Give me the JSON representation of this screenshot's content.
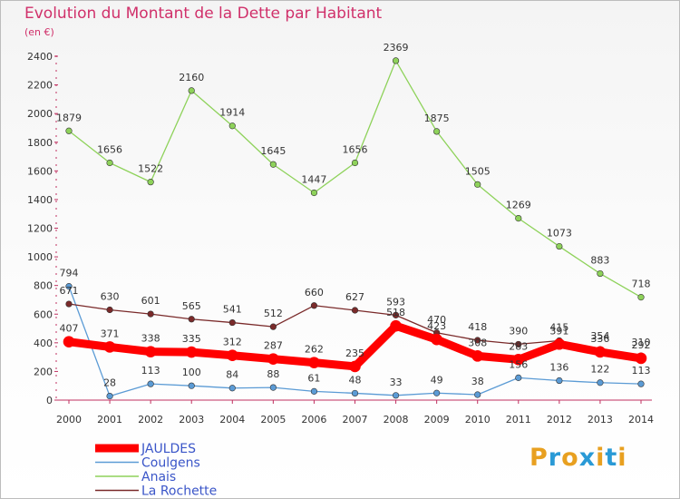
{
  "chart_data": {
    "type": "line",
    "title": "Evolution du Montant de la Dette par Habitant",
    "subtitle": "(en €)",
    "x": [
      "2000",
      "2001",
      "2002",
      "2003",
      "2004",
      "2005",
      "2006",
      "2007",
      "2008",
      "2009",
      "2010",
      "2011",
      "2012",
      "2013",
      "2014"
    ],
    "ylim": [
      0,
      2400
    ],
    "yticks": [
      "0",
      "200",
      "400",
      "600",
      "800",
      "1000",
      "1200",
      "1400",
      "1600",
      "1800",
      "2000",
      "2200",
      "2400"
    ],
    "grid": false,
    "legend_position": "bottom-left",
    "series": [
      {
        "name": "JAULDES",
        "color": "#ff0000",
        "values": [
          407,
          371,
          338,
          335,
          312,
          287,
          262,
          235,
          518,
          423,
          308,
          283,
          391,
          336,
          292
        ],
        "labels": [
          "407",
          "371",
          "338",
          "335",
          "312",
          "287",
          "262",
          "235",
          "518",
          "423",
          "308",
          "283",
          "391",
          "336",
          "292"
        ]
      },
      {
        "name": "Coulgens",
        "color": "#5b9bd5",
        "values": [
          794,
          28,
          113,
          100,
          84,
          88,
          61,
          48,
          33,
          49,
          38,
          156,
          136,
          122,
          113
        ],
        "labels": [
          "794",
          "28",
          "113",
          "100",
          "84",
          "88",
          "61",
          "48",
          "33",
          "49",
          "38",
          "156",
          "136",
          "122",
          "113"
        ]
      },
      {
        "name": "Anais",
        "color": "#8ed25a",
        "values": [
          1879,
          1656,
          1522,
          2160,
          1914,
          1645,
          1447,
          1656,
          2369,
          1875,
          1505,
          1269,
          1073,
          883,
          718
        ],
        "labels": [
          "1879",
          "1656",
          "1522",
          "2160",
          "1914",
          "1645",
          "1447",
          "1656",
          "2369",
          "1875",
          "1505",
          "1269",
          "1073",
          "883",
          "718"
        ]
      },
      {
        "name": "La Rochette",
        "color": "#7a2a2a",
        "values": [
          671,
          630,
          601,
          565,
          541,
          512,
          660,
          627,
          593,
          470,
          418,
          390,
          415,
          354,
          310
        ],
        "labels": [
          "671",
          "630",
          "601",
          "565",
          "541",
          "512",
          "660",
          "627",
          "593",
          "470",
          "418",
          "390",
          "415",
          "354",
          "310"
        ]
      }
    ]
  },
  "logo": {
    "letters": [
      "P",
      "r",
      "o",
      "x",
      "i",
      "t",
      "i"
    ],
    "colors": [
      "#e8a020",
      "#2a9ad6",
      "#e8a020",
      "#2a9ad6",
      "#e8a020",
      "#2a9ad6",
      "#e8a020"
    ]
  }
}
